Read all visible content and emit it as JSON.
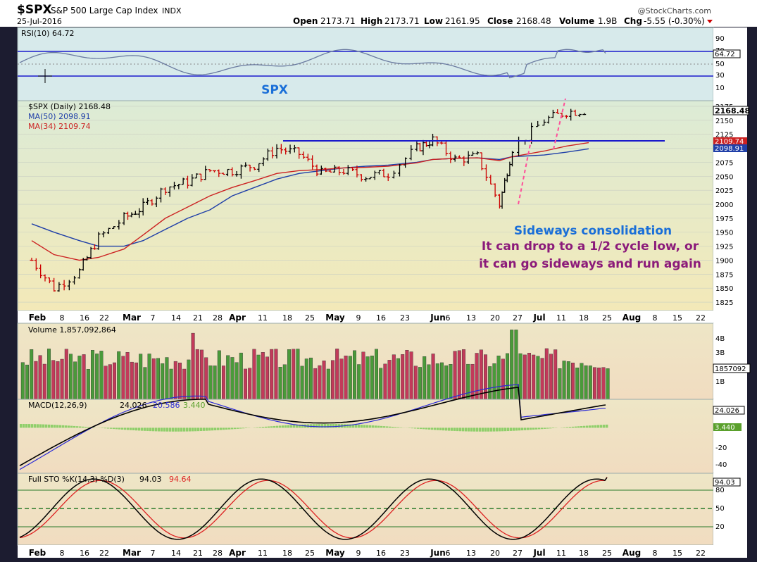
{
  "header": {
    "symbol": "$SPX",
    "name": "S&P 500 Large Cap Index",
    "exchange": "INDX",
    "watermark": "@StockCharts.com",
    "date": "25-Jul-2016",
    "open_label": "Open",
    "open": "2173.71",
    "high_label": "High",
    "high": "2173.71",
    "low_label": "Low",
    "low": "2161.95",
    "close_label": "Close",
    "close": "2168.48",
    "volume_label": "Volume",
    "volume": "1.9B",
    "chg_label": "Chg",
    "chg": "-5.55 (-0.30%)"
  },
  "rsi": {
    "label": "RSI(10) 64.72",
    "last_label": "64.72",
    "ticks": [
      "90",
      "70",
      "50",
      "30",
      "10"
    ],
    "annotation": "SPX"
  },
  "price_legend": {
    "main": "$SPX (Daily) 2168.48",
    "ma50": "MA(50) 2098.91",
    "ma34": "MA(34) 2109.74"
  },
  "price_axis": {
    "ticks": [
      "2175",
      "2150",
      "2125",
      "2100",
      "2075",
      "2050",
      "2025",
      "2000",
      "1975",
      "1950",
      "1925",
      "1900",
      "1875",
      "1850",
      "1825"
    ],
    "last_close": "2168.48",
    "ma34_label": "2109.74",
    "ma50_label": "2098.91"
  },
  "annotations": {
    "title": "Sideways consolidation",
    "line1": "It can drop to a 1/2 cycle low, or",
    "line2": "it can go sideways and run again"
  },
  "date_axis": [
    "Feb",
    "8",
    "16",
    "22",
    "Mar",
    "7",
    "14",
    "21",
    "28",
    "Apr",
    "11",
    "18",
    "25",
    "May",
    "9",
    "16",
    "23",
    "Jun",
    "6",
    "13",
    "20",
    "27",
    "Jul",
    "11",
    "18",
    "25",
    "Aug",
    "8",
    "15",
    "22"
  ],
  "volume": {
    "label": "Volume 1,857,092,864",
    "ticks": [
      "4B",
      "3B",
      "2B",
      "1B"
    ],
    "last_label": "1857092"
  },
  "macd": {
    "label": "MACD(12,26,9)",
    "macd_value": "24.026",
    "signal_value": "20.586",
    "hist_value": "3.440",
    "ticks": [
      "20",
      "0",
      "-20",
      "-40"
    ],
    "last_label": "24.026",
    "hist_label": "3.440"
  },
  "sto": {
    "label": "Full STO %K(14,3) %D(3)",
    "k_value": "94.03",
    "d_value": "94.64",
    "ticks": [
      "80",
      "50",
      "20"
    ],
    "last_label": "94.03"
  },
  "colors": {
    "frame": "#1c1c30",
    "up": "#000000",
    "down": "#cc0000",
    "ma50": "#1f3fa8",
    "ma34": "#cc2222",
    "resistance": "#1a1acc",
    "pink_trend": "#ff4f9a",
    "annotation_blue": "#1a6fd8",
    "annotation_purple": "#8b1a7a"
  },
  "chart_data": {
    "type": "line",
    "title": "$SPX S&P 500 Large Cap Index INDX",
    "x": [
      "2016-02-01",
      "2016-02-08",
      "2016-02-16",
      "2016-02-22",
      "2016-03-01",
      "2016-03-07",
      "2016-03-14",
      "2016-03-21",
      "2016-03-28",
      "2016-04-04",
      "2016-04-11",
      "2016-04-18",
      "2016-04-25",
      "2016-05-02",
      "2016-05-09",
      "2016-05-16",
      "2016-05-23",
      "2016-06-01",
      "2016-06-06",
      "2016-06-13",
      "2016-06-20",
      "2016-06-27",
      "2016-07-01",
      "2016-07-11",
      "2016-07-18",
      "2016-07-25"
    ],
    "series": [
      {
        "name": "$SPX",
        "values": [
          1900,
          1850,
          1880,
          1940,
          1975,
          1995,
          2030,
          2040,
          2060,
          2060,
          2070,
          2100,
          2090,
          2055,
          2060,
          2050,
          2055,
          2100,
          2115,
          2080,
          2085,
          2000,
          2100,
          2150,
          2165,
          2168
        ]
      },
      {
        "name": "MA(50)",
        "values": [
          1965,
          1950,
          1935,
          1925,
          1925,
          1935,
          1955,
          1975,
          1990,
          2015,
          2030,
          2045,
          2055,
          2060,
          2065,
          2068,
          2070,
          2075,
          2080,
          2082,
          2083,
          2080,
          2085,
          2088,
          2093,
          2099
        ]
      },
      {
        "name": "MA(34)",
        "values": [
          1935,
          1910,
          1900,
          1905,
          1920,
          1945,
          1975,
          1995,
          2015,
          2030,
          2042,
          2055,
          2060,
          2062,
          2065,
          2066,
          2068,
          2074,
          2080,
          2082,
          2083,
          2078,
          2085,
          2095,
          2104,
          2110
        ]
      }
    ],
    "ylim": [
      1810,
      2185
    ],
    "resistance_level": 2110,
    "rsi_last": 64.72,
    "macd": [
      24.026,
      20.586,
      3.44
    ],
    "stochastic": [
      94.03,
      94.64
    ],
    "volume_last": 1857092864,
    "grid": true
  }
}
